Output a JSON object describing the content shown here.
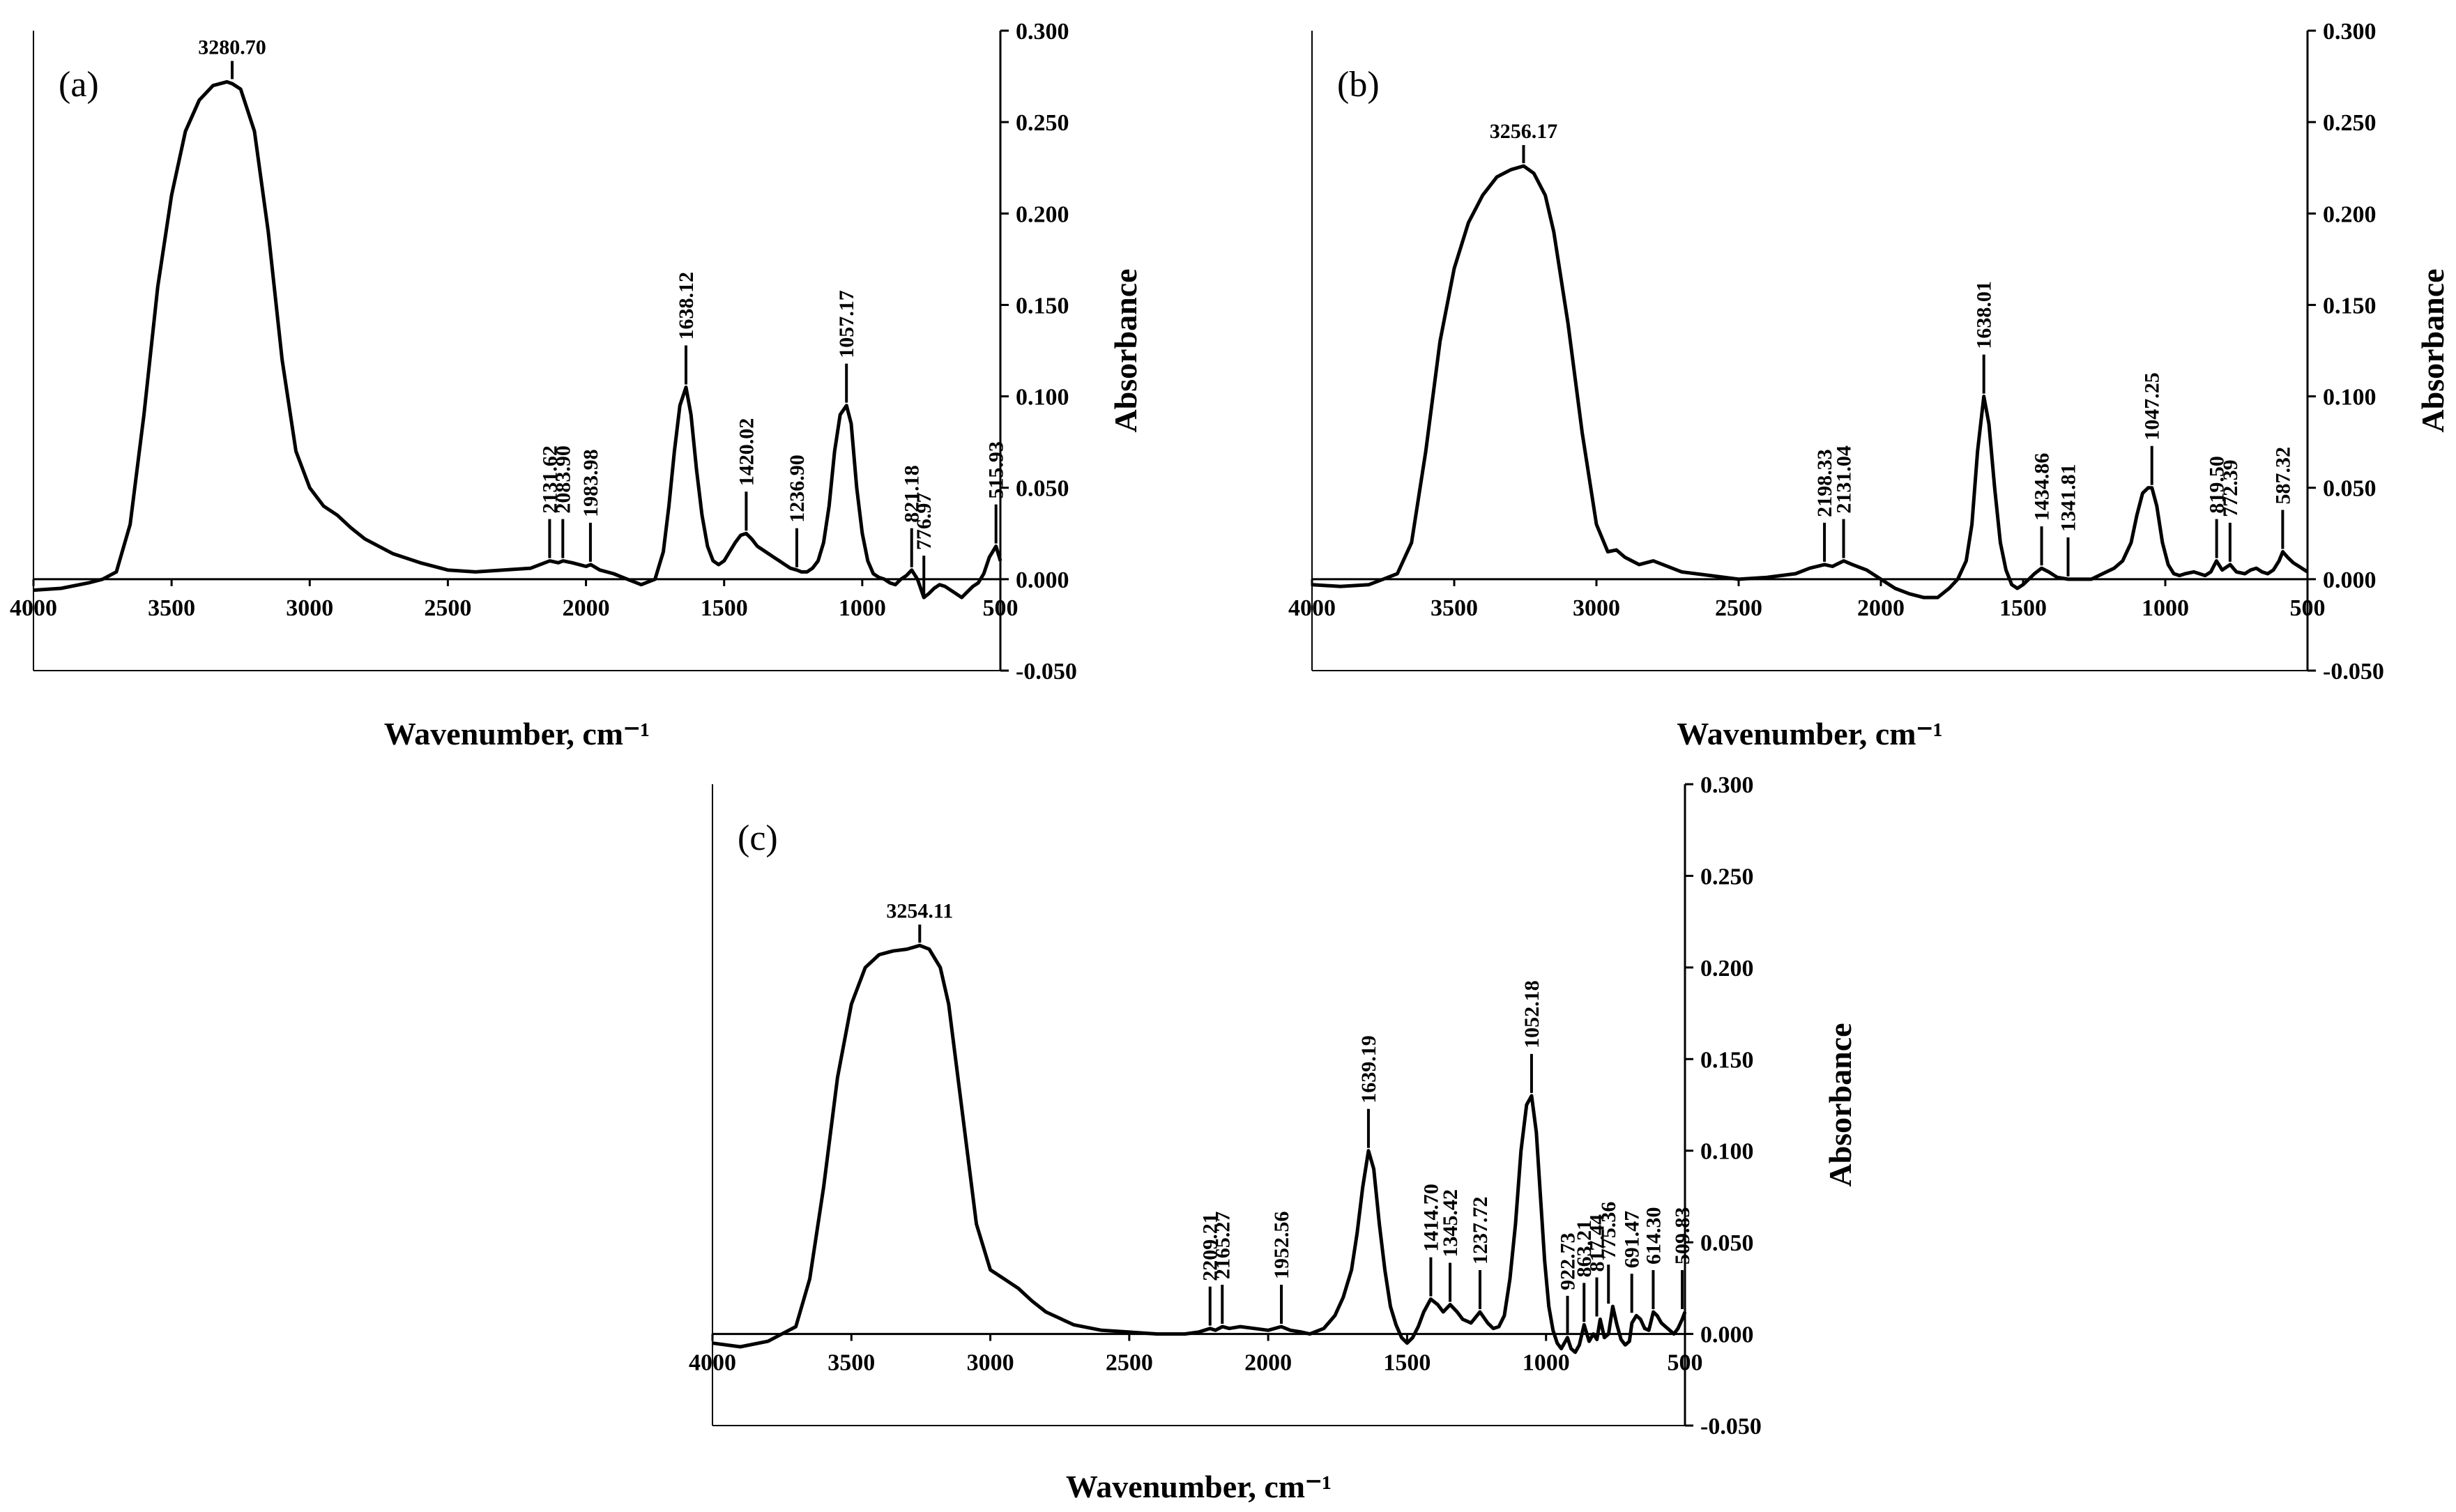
{
  "chart_data": [
    {
      "type": "line",
      "panel": "(a)",
      "title": "",
      "xlabel": "Wavenumber, cm⁻¹",
      "ylabel": "Absorbance",
      "xlim": [
        4000,
        500
      ],
      "ylim": [
        -0.05,
        0.3
      ],
      "x_ticks": [
        "4000",
        "3500",
        "3000",
        "2500",
        "2000",
        "1500",
        "1000",
        "500"
      ],
      "y_ticks": [
        "0.300",
        "0.250",
        "0.200",
        "0.150",
        "0.100",
        "0.050",
        "0.000",
        "-0.050"
      ],
      "spectrum": {
        "baseline": 0.0,
        "x": [
          4000,
          3900,
          3800,
          3750,
          3700,
          3650,
          3600,
          3550,
          3500,
          3450,
          3400,
          3350,
          3300,
          3280,
          3250,
          3200,
          3150,
          3100,
          3050,
          3000,
          2950,
          2900,
          2850,
          2800,
          2700,
          2600,
          2500,
          2400,
          2300,
          2200,
          2131,
          2100,
          2083,
          2050,
          2000,
          1983,
          1950,
          1900,
          1850,
          1800,
          1750,
          1720,
          1700,
          1680,
          1660,
          1638,
          1620,
          1600,
          1580,
          1560,
          1540,
          1520,
          1500,
          1480,
          1460,
          1440,
          1420,
          1400,
          1380,
          1350,
          1320,
          1300,
          1280,
          1260,
          1237,
          1220,
          1200,
          1180,
          1160,
          1140,
          1120,
          1100,
          1080,
          1057,
          1040,
          1020,
          1000,
          980,
          960,
          940,
          920,
          900,
          880,
          860,
          840,
          821,
          800,
          777,
          760,
          740,
          720,
          700,
          680,
          660,
          640,
          620,
          600,
          580,
          560,
          540,
          516,
          500
        ],
        "y": [
          -0.006,
          -0.005,
          -0.002,
          0.0,
          0.004,
          0.03,
          0.09,
          0.16,
          0.21,
          0.245,
          0.262,
          0.27,
          0.272,
          0.271,
          0.268,
          0.245,
          0.19,
          0.12,
          0.07,
          0.05,
          0.04,
          0.035,
          0.028,
          0.022,
          0.014,
          0.009,
          0.005,
          0.004,
          0.005,
          0.006,
          0.01,
          0.009,
          0.01,
          0.009,
          0.007,
          0.008,
          0.005,
          0.003,
          0.0,
          -0.003,
          0.0,
          0.015,
          0.04,
          0.07,
          0.095,
          0.105,
          0.09,
          0.06,
          0.035,
          0.018,
          0.01,
          0.008,
          0.01,
          0.015,
          0.02,
          0.024,
          0.025,
          0.022,
          0.018,
          0.015,
          0.012,
          0.01,
          0.008,
          0.006,
          0.005,
          0.004,
          0.004,
          0.006,
          0.01,
          0.02,
          0.04,
          0.07,
          0.09,
          0.095,
          0.085,
          0.05,
          0.025,
          0.01,
          0.003,
          0.001,
          0.0,
          -0.002,
          -0.003,
          0.0,
          0.002,
          0.005,
          0.0,
          -0.01,
          -0.008,
          -0.005,
          -0.003,
          -0.004,
          -0.006,
          -0.008,
          -0.01,
          -0.007,
          -0.004,
          -0.002,
          0.003,
          0.012,
          0.018,
          0.01
        ]
      },
      "peaks": [
        {
          "x": 3280.7,
          "label": "3280.70",
          "tip": 0.272
        },
        {
          "x": 2131.62,
          "label": "2131.62",
          "tip": 0.01
        },
        {
          "x": 2083.9,
          "label": "2083.90",
          "tip": 0.01
        },
        {
          "x": 1983.98,
          "label": "1983.98",
          "tip": 0.008
        },
        {
          "x": 1638.12,
          "label": "1638.12",
          "tip": 0.105
        },
        {
          "x": 1420.02,
          "label": "1420.02",
          "tip": 0.025
        },
        {
          "x": 1236.9,
          "label": "1236.90",
          "tip": 0.005
        },
        {
          "x": 1057.17,
          "label": "1057.17",
          "tip": 0.095
        },
        {
          "x": 821.18,
          "label": "821.18",
          "tip": 0.005
        },
        {
          "x": 776.97,
          "label": "776.97",
          "tip": -0.01
        },
        {
          "x": 515.93,
          "label": "515.93",
          "tip": 0.018
        }
      ]
    },
    {
      "type": "line",
      "panel": "(b)",
      "title": "",
      "xlabel": "Wavenumber, cm⁻¹",
      "ylabel": "Absorbance",
      "xlim": [
        4000,
        500
      ],
      "ylim": [
        -0.05,
        0.3
      ],
      "x_ticks": [
        "4000",
        "3500",
        "3000",
        "2500",
        "2000",
        "1500",
        "1000",
        "500"
      ],
      "y_ticks": [
        "0.300",
        "0.250",
        "0.200",
        "0.150",
        "0.100",
        "0.050",
        "0.000",
        "-0.050"
      ],
      "spectrum": {
        "baseline": 0.0,
        "x": [
          4000,
          3900,
          3800,
          3750,
          3700,
          3650,
          3600,
          3550,
          3500,
          3450,
          3400,
          3350,
          3300,
          3256,
          3220,
          3180,
          3150,
          3100,
          3050,
          3000,
          2960,
          2930,
          2900,
          2850,
          2800,
          2700,
          2600,
          2500,
          2400,
          2300,
          2250,
          2198,
          2170,
          2131,
          2100,
          2050,
          2000,
          1950,
          1900,
          1850,
          1800,
          1760,
          1730,
          1700,
          1680,
          1660,
          1638,
          1620,
          1600,
          1580,
          1560,
          1540,
          1520,
          1500,
          1480,
          1460,
          1435,
          1410,
          1380,
          1342,
          1320,
          1300,
          1260,
          1220,
          1180,
          1150,
          1120,
          1100,
          1080,
          1060,
          1047,
          1030,
          1010,
          990,
          970,
          950,
          930,
          900,
          880,
          860,
          840,
          820,
          800,
          772,
          750,
          720,
          700,
          680,
          660,
          640,
          620,
          600,
          587,
          570,
          550,
          530,
          500
        ],
        "y": [
          -0.003,
          -0.004,
          -0.003,
          0.0,
          0.003,
          0.02,
          0.07,
          0.13,
          0.17,
          0.195,
          0.21,
          0.22,
          0.224,
          0.226,
          0.222,
          0.21,
          0.19,
          0.14,
          0.08,
          0.03,
          0.015,
          0.016,
          0.012,
          0.008,
          0.01,
          0.004,
          0.002,
          0.0,
          0.001,
          0.003,
          0.006,
          0.008,
          0.007,
          0.01,
          0.008,
          0.005,
          0.0,
          -0.005,
          -0.008,
          -0.01,
          -0.01,
          -0.005,
          0.0,
          0.01,
          0.03,
          0.07,
          0.1,
          0.085,
          0.05,
          0.02,
          0.005,
          -0.003,
          -0.005,
          -0.003,
          0.0,
          0.003,
          0.006,
          0.004,
          0.001,
          0.0,
          0.0,
          0.0,
          0.0,
          0.003,
          0.006,
          0.01,
          0.02,
          0.035,
          0.047,
          0.05,
          0.05,
          0.04,
          0.02,
          0.008,
          0.003,
          0.002,
          0.003,
          0.004,
          0.003,
          0.002,
          0.004,
          0.01,
          0.005,
          0.008,
          0.004,
          0.003,
          0.005,
          0.006,
          0.004,
          0.003,
          0.005,
          0.01,
          0.015,
          0.012,
          0.009,
          0.007,
          0.004
        ]
      },
      "peaks": [
        {
          "x": 3256.17,
          "label": "3256.17",
          "tip": 0.226
        },
        {
          "x": 2198.33,
          "label": "2198.33",
          "tip": 0.008
        },
        {
          "x": 2131.04,
          "label": "2131.04",
          "tip": 0.01
        },
        {
          "x": 1638.01,
          "label": "1638.01",
          "tip": 0.1
        },
        {
          "x": 1434.86,
          "label": "1434.86",
          "tip": 0.006
        },
        {
          "x": 1341.81,
          "label": "1341.81",
          "tip": 0.0
        },
        {
          "x": 1047.25,
          "label": "1047.25",
          "tip": 0.05
        },
        {
          "x": 819.5,
          "label": "819.50",
          "tip": 0.01
        },
        {
          "x": 772.39,
          "label": "772.39",
          "tip": 0.008
        },
        {
          "x": 587.32,
          "label": "587.32",
          "tip": 0.015
        }
      ]
    },
    {
      "type": "line",
      "panel": "(c)",
      "title": "",
      "xlabel": "Wavenumber, cm⁻¹",
      "ylabel": "Absorbance",
      "xlim": [
        4000,
        500
      ],
      "ylim": [
        -0.05,
        0.3
      ],
      "x_ticks": [
        "4000",
        "3500",
        "3000",
        "2500",
        "2000",
        "1500",
        "1000",
        "500"
      ],
      "y_ticks": [
        "0.300",
        "0.250",
        "0.200",
        "0.150",
        "0.100",
        "0.050",
        "0.000",
        "-0.050"
      ],
      "spectrum": {
        "baseline": 0.0,
        "x": [
          4000,
          3900,
          3800,
          3750,
          3700,
          3650,
          3600,
          3550,
          3500,
          3450,
          3400,
          3350,
          3300,
          3254,
          3220,
          3180,
          3150,
          3100,
          3050,
          3000,
          2950,
          2900,
          2850,
          2800,
          2700,
          2600,
          2500,
          2400,
          2300,
          2250,
          2209,
          2190,
          2165,
          2140,
          2100,
          2050,
          2000,
          1953,
          1920,
          1880,
          1850,
          1800,
          1760,
          1730,
          1700,
          1680,
          1660,
          1639,
          1620,
          1600,
          1580,
          1560,
          1540,
          1520,
          1500,
          1480,
          1460,
          1440,
          1415,
          1390,
          1370,
          1345,
          1320,
          1300,
          1270,
          1238,
          1210,
          1190,
          1170,
          1150,
          1130,
          1110,
          1090,
          1070,
          1052,
          1035,
          1020,
          1005,
          990,
          975,
          960,
          945,
          923,
          910,
          895,
          880,
          863,
          845,
          830,
          817,
          805,
          790,
          775,
          760,
          745,
          730,
          715,
          700,
          691,
          675,
          660,
          645,
          630,
          614,
          600,
          585,
          570,
          555,
          540,
          525,
          510,
          500
        ],
        "y": [
          -0.005,
          -0.007,
          -0.004,
          0.0,
          0.004,
          0.03,
          0.08,
          0.14,
          0.18,
          0.2,
          0.207,
          0.209,
          0.21,
          0.212,
          0.21,
          0.2,
          0.18,
          0.12,
          0.06,
          0.035,
          0.03,
          0.025,
          0.018,
          0.012,
          0.005,
          0.002,
          0.001,
          0.0,
          0.0,
          0.001,
          0.003,
          0.002,
          0.004,
          0.003,
          0.004,
          0.003,
          0.002,
          0.004,
          0.002,
          0.001,
          0.0,
          0.003,
          0.01,
          0.02,
          0.035,
          0.055,
          0.08,
          0.1,
          0.09,
          0.06,
          0.035,
          0.015,
          0.005,
          -0.002,
          -0.005,
          -0.002,
          0.004,
          0.012,
          0.019,
          0.016,
          0.012,
          0.016,
          0.012,
          0.008,
          0.006,
          0.012,
          0.006,
          0.003,
          0.004,
          0.01,
          0.03,
          0.06,
          0.1,
          0.125,
          0.13,
          0.11,
          0.075,
          0.04,
          0.015,
          0.002,
          -0.005,
          -0.008,
          -0.002,
          -0.008,
          -0.01,
          -0.006,
          0.005,
          -0.004,
          0.0,
          -0.003,
          0.008,
          -0.002,
          0.0,
          0.015,
          0.005,
          -0.003,
          -0.006,
          -0.004,
          0.006,
          0.01,
          0.008,
          0.003,
          0.002,
          0.012,
          0.01,
          0.006,
          0.004,
          0.002,
          0.0,
          0.003,
          0.008,
          0.012
        ]
      },
      "peaks": [
        {
          "x": 3254.11,
          "label": "3254.11",
          "tip": 0.212
        },
        {
          "x": 2209.21,
          "label": "2209.21",
          "tip": 0.003
        },
        {
          "x": 2165.27,
          "label": "2165.27",
          "tip": 0.004
        },
        {
          "x": 1952.56,
          "label": "1952.56",
          "tip": 0.004
        },
        {
          "x": 1639.19,
          "label": "1639.19",
          "tip": 0.1
        },
        {
          "x": 1414.7,
          "label": "1414.70",
          "tip": 0.019
        },
        {
          "x": 1345.42,
          "label": "1345.42",
          "tip": 0.016
        },
        {
          "x": 1237.72,
          "label": "1237.72",
          "tip": 0.012
        },
        {
          "x": 1052.18,
          "label": "1052.18",
          "tip": 0.13
        },
        {
          "x": 922.73,
          "label": "922.73",
          "tip": -0.002
        },
        {
          "x": 863.21,
          "label": "863.21",
          "tip": 0.005
        },
        {
          "x": 817.44,
          "label": "817.44",
          "tip": 0.008
        },
        {
          "x": 775.36,
          "label": "775.36",
          "tip": 0.015
        },
        {
          "x": 691.47,
          "label": "691.47",
          "tip": 0.01
        },
        {
          "x": 614.3,
          "label": "614.30",
          "tip": 0.012
        },
        {
          "x": 509.83,
          "label": "509.83",
          "tip": 0.012
        }
      ]
    }
  ]
}
